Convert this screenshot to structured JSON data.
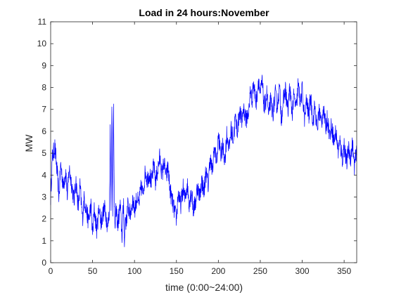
{
  "chart_data": {
    "type": "line",
    "title": "Load in 24 hours:November",
    "xlabel": "time (0:00~24:00)",
    "ylabel": "MW",
    "xlim": [
      0,
      365
    ],
    "ylim": [
      0,
      11
    ],
    "xticks": [
      0,
      50,
      100,
      150,
      200,
      250,
      300,
      350
    ],
    "yticks": [
      0,
      1,
      2,
      3,
      4,
      5,
      6,
      7,
      8,
      9,
      10,
      11
    ],
    "grid": false,
    "series": [
      {
        "name": "load",
        "color": "#0000ff",
        "x": [
          0,
          2,
          5,
          8,
          10,
          12,
          15,
          18,
          20,
          22,
          25,
          28,
          30,
          33,
          35,
          38,
          40,
          42,
          45,
          48,
          50,
          52,
          55,
          58,
          60,
          62,
          65,
          68,
          70,
          71,
          72,
          73,
          74,
          75,
          76,
          77,
          78,
          80,
          83,
          85,
          87,
          88,
          89,
          90,
          92,
          95,
          98,
          100,
          103,
          105,
          108,
          110,
          113,
          115,
          118,
          120,
          123,
          125,
          128,
          130,
          133,
          135,
          138,
          140,
          142,
          145,
          148,
          150,
          152,
          155,
          158,
          160,
          163,
          165,
          168,
          170,
          173,
          175,
          178,
          180,
          183,
          185,
          188,
          190,
          193,
          195,
          198,
          200,
          203,
          205,
          208,
          210,
          213,
          215,
          218,
          220,
          223,
          225,
          228,
          230,
          233,
          235,
          237,
          238,
          240,
          242,
          245,
          248,
          250,
          252,
          255,
          258,
          260,
          262,
          265,
          268,
          270,
          273,
          275,
          278,
          280,
          283,
          285,
          288,
          290,
          293,
          295,
          298,
          300,
          303,
          305,
          308,
          310,
          313,
          315,
          318,
          320,
          323,
          325,
          328,
          330,
          333,
          335,
          338,
          340,
          343,
          345,
          348,
          350,
          353,
          355,
          358,
          360,
          362,
          365
        ],
        "y": [
          3.0,
          4.8,
          5.3,
          4.0,
          3.0,
          4.5,
          3.5,
          4.2,
          3.0,
          4.3,
          3.6,
          2.8,
          3.8,
          2.5,
          3.5,
          2.0,
          3.0,
          2.5,
          1.9,
          2.6,
          1.3,
          2.4,
          1.5,
          2.6,
          1.8,
          2.2,
          2.5,
          1.6,
          2.3,
          6.0,
          2.4,
          7.5,
          2.0,
          7.6,
          2.3,
          1.6,
          2.5,
          1.7,
          2.6,
          1.2,
          2.8,
          0.6,
          2.2,
          1.8,
          2.6,
          2.2,
          2.9,
          2.4,
          3.0,
          2.6,
          3.5,
          3.1,
          4.2,
          3.8,
          4.1,
          3.6,
          4.5,
          3.7,
          4.3,
          4.8,
          4.0,
          4.6,
          3.9,
          4.4,
          3.4,
          2.8,
          2.3,
          2.0,
          3.2,
          2.6,
          3.4,
          2.9,
          3.6,
          2.7,
          3.3,
          2.4,
          2.8,
          3.5,
          3.0,
          3.8,
          3.2,
          4.2,
          3.5,
          4.8,
          4.1,
          5.3,
          4.6,
          5.8,
          4.9,
          5.3,
          4.7,
          5.9,
          5.2,
          6.1,
          5.6,
          6.6,
          6.0,
          7.0,
          6.4,
          7.1,
          6.5,
          6.8,
          7.0,
          8.0,
          7.4,
          8.2,
          7.3,
          8.4,
          7.6,
          8.3,
          7.0,
          7.8,
          6.6,
          7.4,
          6.8,
          7.7,
          7.1,
          8.0,
          6.6,
          7.5,
          7.9,
          6.9,
          8.0,
          6.8,
          7.6,
          7.0,
          8.1,
          7.3,
          7.9,
          6.5,
          7.4,
          6.7,
          7.6,
          6.4,
          7.2,
          6.0,
          7.0,
          6.3,
          7.1,
          6.2,
          6.6,
          5.8,
          6.3,
          5.5,
          6.0,
          5.1,
          5.5,
          4.7,
          5.4,
          4.5,
          5.2,
          4.8,
          5.5,
          4.4,
          5.0
        ],
        "noise_amplitude": 0.45
      }
    ]
  }
}
